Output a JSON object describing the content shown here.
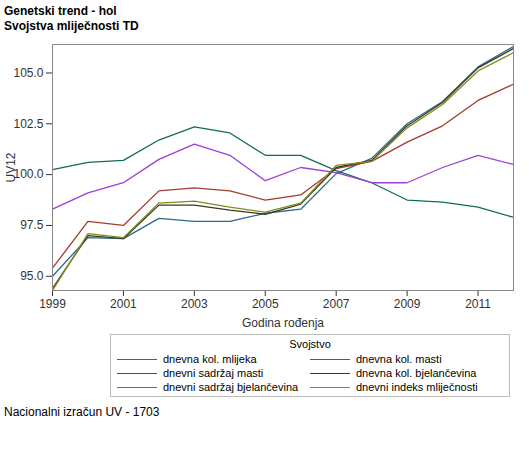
{
  "chart_data": {
    "type": "line",
    "title": "Genetski trend - hol",
    "subtitle": "Svojstva mliječnosti TD",
    "x_label": "Godina rođenja",
    "y_label": "UV12",
    "legend_title": "Svojstvo",
    "caption": "Nacionalni izračun UV - 1703",
    "legend": "bottom",
    "grid": false,
    "x": [
      1999,
      2000,
      2001,
      2002,
      2003,
      2004,
      2005,
      2006,
      2007,
      2008,
      2009,
      2010,
      2011,
      2012
    ],
    "xlim": [
      1999,
      2012
    ],
    "xticks": [
      1999,
      2001,
      2003,
      2005,
      2007,
      2009,
      2011
    ],
    "ylim": [
      94.3,
      106.4
    ],
    "yticks": [
      {
        "value": 95,
        "label": "95.0"
      },
      {
        "value": 97.5,
        "label": "97.5"
      },
      {
        "value": 100,
        "label": "100.0"
      },
      {
        "value": 102.5,
        "label": "102.5"
      },
      {
        "value": 105,
        "label": "105.0"
      }
    ],
    "series": [
      {
        "name": "dnevna kol. mlijeka",
        "color": "#2b6a8f",
        "values": [
          95.0,
          96.9,
          96.85,
          97.85,
          97.7,
          97.7,
          98.1,
          98.3,
          100.05,
          100.8,
          102.5,
          103.6,
          105.3,
          106.3
        ]
      },
      {
        "name": "dnevna kol. masti",
        "color": "#a33b2f",
        "values": [
          95.4,
          97.7,
          97.5,
          99.2,
          99.35,
          99.2,
          98.75,
          99.0,
          100.3,
          100.65,
          101.6,
          102.4,
          103.65,
          104.45
        ]
      },
      {
        "name": "dnevni sadržaj masti",
        "color": "#0f6b5e",
        "values": [
          100.25,
          100.6,
          100.7,
          101.7,
          102.35,
          102.05,
          100.95,
          100.95,
          100.2,
          99.6,
          98.75,
          98.65,
          98.4,
          97.9
        ]
      },
      {
        "name": "dnevna kol. bjelančevina",
        "color": "#3d3a1c",
        "values": [
          94.4,
          97.0,
          96.85,
          98.5,
          98.5,
          98.25,
          98.05,
          98.55,
          100.35,
          100.7,
          102.4,
          103.55,
          105.25,
          106.2
        ]
      },
      {
        "name": "dnevni sadržaj bjelančevina",
        "color": "#9b3fd6",
        "values": [
          98.3,
          99.1,
          99.6,
          100.75,
          101.5,
          100.95,
          99.7,
          100.35,
          100.1,
          99.6,
          99.6,
          100.35,
          100.95,
          100.5
        ]
      },
      {
        "name": "dnevni indeks mliječnosti",
        "color": "#808c22",
        "values": [
          94.3,
          97.1,
          96.9,
          98.6,
          98.7,
          98.4,
          98.15,
          98.6,
          100.45,
          100.65,
          102.3,
          103.45,
          105.1,
          106.0
        ]
      }
    ]
  }
}
